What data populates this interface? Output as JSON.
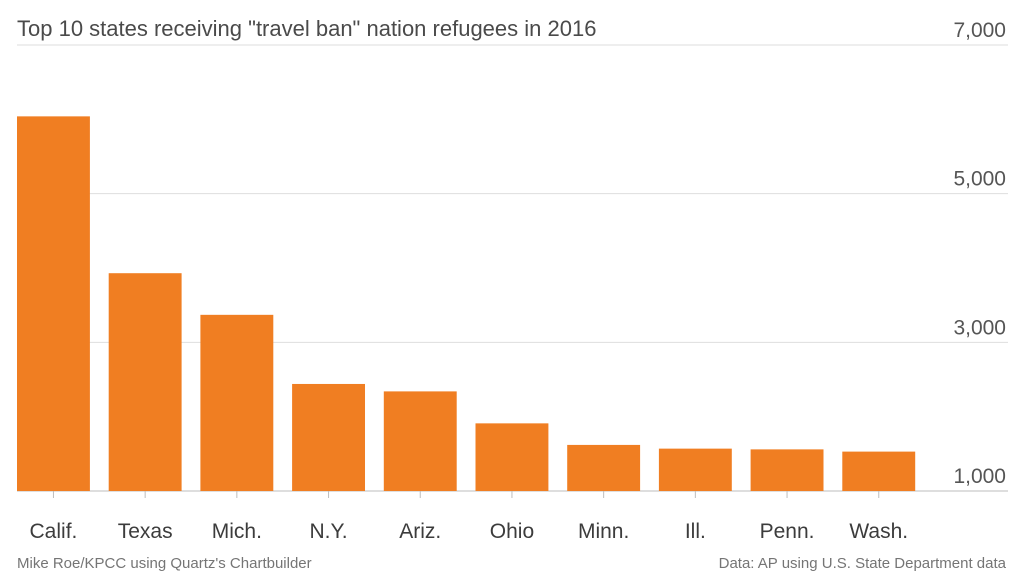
{
  "chart_data": {
    "type": "bar",
    "title": "Top 10 states receiving \"travel ban\" nation refugees in 2016",
    "categories": [
      "Calif.",
      "Texas",
      "Mich.",
      "N.Y.",
      "Ariz.",
      "Ohio",
      "Minn.",
      "Ill.",
      "Penn.",
      "Wash."
    ],
    "values": [
      6040,
      3930,
      3370,
      2440,
      2340,
      1910,
      1620,
      1570,
      1560,
      1530
    ],
    "yticks": [
      "1,000",
      "3,000",
      "5,000",
      "7,000"
    ],
    "ytick_values": [
      1000,
      3000,
      5000,
      7000
    ],
    "ylim": [
      1000,
      7000
    ],
    "xlabel": "",
    "ylabel": "",
    "grid": true,
    "bar_color": "#f07e22"
  },
  "footer": {
    "left": "Mike Roe/KPCC using Quartz's Chartbuilder",
    "right": "Data: AP using U.S. State Department data"
  }
}
